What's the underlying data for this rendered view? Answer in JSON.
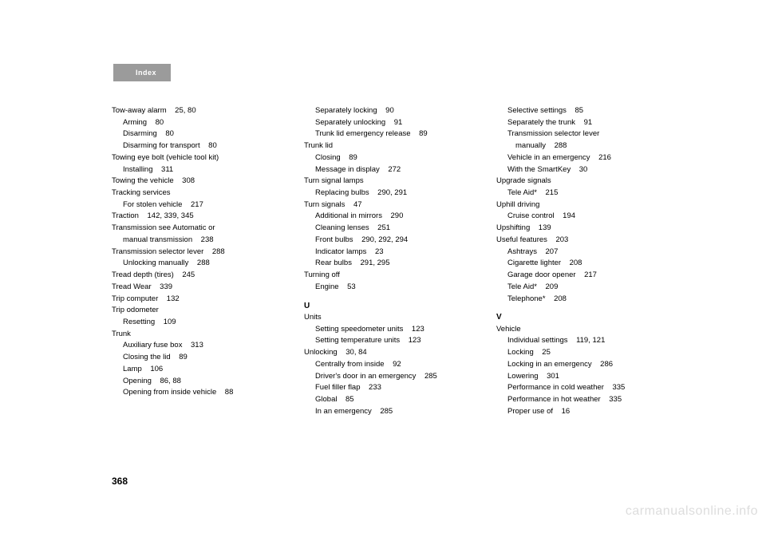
{
  "header": {
    "label": "Index"
  },
  "pageNumber": "368",
  "watermark": "carmanualsonline.info",
  "columns": [
    {
      "items": [
        {
          "t": "e",
          "text": "Tow-away alarm    25, 80"
        },
        {
          "t": "s",
          "text": "Arming    80"
        },
        {
          "t": "s",
          "text": "Disarming    80"
        },
        {
          "t": "s",
          "text": "Disarming for transport    80"
        },
        {
          "t": "e",
          "text": "Towing eye bolt (vehicle tool kit)"
        },
        {
          "t": "s",
          "text": "Installing    311"
        },
        {
          "t": "e",
          "text": "Towing the vehicle    308"
        },
        {
          "t": "e",
          "text": "Tracking services"
        },
        {
          "t": "s",
          "text": "For stolen vehicle    217"
        },
        {
          "t": "e",
          "text": "Traction    142, 339, 345"
        },
        {
          "t": "e",
          "text": "Transmission see Automatic or"
        },
        {
          "t": "s",
          "text": "manual transmission    238"
        },
        {
          "t": "e",
          "text": "Transmission selector lever    288"
        },
        {
          "t": "s",
          "text": "Unlocking manually    288"
        },
        {
          "t": "e",
          "text": "Tread depth (tires)    245"
        },
        {
          "t": "e",
          "text": "Tread Wear    339"
        },
        {
          "t": "e",
          "text": "Trip computer    132"
        },
        {
          "t": "e",
          "text": "Trip odometer"
        },
        {
          "t": "s",
          "text": "Resetting    109"
        },
        {
          "t": "e",
          "text": "Trunk"
        },
        {
          "t": "s",
          "text": "Auxiliary fuse box    313"
        },
        {
          "t": "s",
          "text": "Closing the lid    89"
        },
        {
          "t": "s",
          "text": "Lamp    106"
        },
        {
          "t": "s",
          "text": "Opening    86, 88"
        },
        {
          "t": "s",
          "text": "Opening from inside vehicle    88"
        }
      ]
    },
    {
      "items": [
        {
          "t": "s",
          "text": "Separately locking    90"
        },
        {
          "t": "s",
          "text": "Separately unlocking    91"
        },
        {
          "t": "s",
          "text": "Trunk lid emergency release    89"
        },
        {
          "t": "e",
          "text": "Trunk lid"
        },
        {
          "t": "s",
          "text": "Closing    89"
        },
        {
          "t": "s",
          "text": "Message in display    272"
        },
        {
          "t": "e",
          "text": "Turn signal lamps"
        },
        {
          "t": "s",
          "text": "Replacing bulbs    290, 291"
        },
        {
          "t": "e",
          "text": "Turn signals    47"
        },
        {
          "t": "s",
          "text": "Additional in mirrors    290"
        },
        {
          "t": "s",
          "text": "Cleaning lenses    251"
        },
        {
          "t": "s",
          "text": "Front bulbs    290, 292, 294"
        },
        {
          "t": "s",
          "text": "Indicator lamps    23"
        },
        {
          "t": "s",
          "text": "Rear bulbs    291, 295"
        },
        {
          "t": "e",
          "text": "Turning off"
        },
        {
          "t": "s",
          "text": "Engine    53"
        },
        {
          "t": "h",
          "text": "U"
        },
        {
          "t": "e",
          "text": "Units"
        },
        {
          "t": "s",
          "text": "Setting speedometer units    123"
        },
        {
          "t": "s",
          "text": "Setting temperature units    123"
        },
        {
          "t": "e",
          "text": "Unlocking    30, 84"
        },
        {
          "t": "s",
          "text": "Centrally from inside    92"
        },
        {
          "t": "s",
          "text": "Driver's door in an emergency    285"
        },
        {
          "t": "s",
          "text": "Fuel filler flap    233"
        },
        {
          "t": "s",
          "text": "Global    85"
        },
        {
          "t": "s",
          "text": "In an emergency    285"
        }
      ]
    },
    {
      "items": [
        {
          "t": "s",
          "text": "Selective settings    85"
        },
        {
          "t": "s",
          "text": "Separately the trunk    91"
        },
        {
          "t": "s",
          "text": "Transmission selector lever"
        },
        {
          "t": "s2",
          "text": "manually    288"
        },
        {
          "t": "s",
          "text": "Vehicle in an emergency    216"
        },
        {
          "t": "s",
          "text": "With the SmartKey    30"
        },
        {
          "t": "e",
          "text": "Upgrade signals"
        },
        {
          "t": "s",
          "text": "Tele Aid*    215"
        },
        {
          "t": "e",
          "text": "Uphill driving"
        },
        {
          "t": "s",
          "text": "Cruise control    194"
        },
        {
          "t": "e",
          "text": "Upshifting    139"
        },
        {
          "t": "e",
          "text": "Useful features    203"
        },
        {
          "t": "s",
          "text": "Ashtrays    207"
        },
        {
          "t": "s",
          "text": "Cigarette lighter    208"
        },
        {
          "t": "s",
          "text": "Garage door opener    217"
        },
        {
          "t": "s",
          "text": "Tele Aid*    209"
        },
        {
          "t": "s",
          "text": "Telephone*    208"
        },
        {
          "t": "h",
          "text": "V"
        },
        {
          "t": "e",
          "text": "Vehicle"
        },
        {
          "t": "s",
          "text": "Individual settings    119, 121"
        },
        {
          "t": "s",
          "text": "Locking    25"
        },
        {
          "t": "s",
          "text": "Locking in an emergency    286"
        },
        {
          "t": "s",
          "text": "Lowering    301"
        },
        {
          "t": "s",
          "text": "Performance in cold weather    335"
        },
        {
          "t": "s",
          "text": "Performance in hot weather    335"
        },
        {
          "t": "s",
          "text": "Proper use of    16"
        }
      ]
    }
  ]
}
